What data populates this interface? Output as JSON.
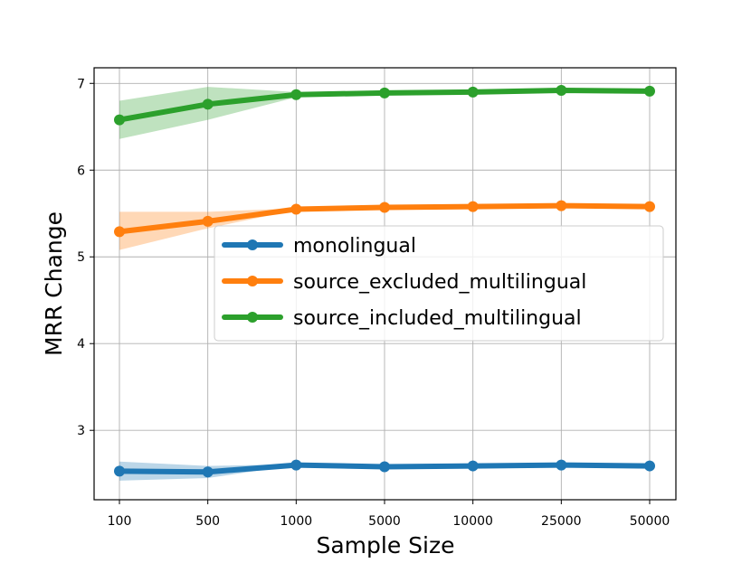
{
  "chart_data": {
    "type": "line",
    "categories": [
      "100",
      "500",
      "1000",
      "5000",
      "10000",
      "25000",
      "50000"
    ],
    "xlabel": "Sample Size",
    "ylabel": "MRR Change",
    "ylim": [
      2.2,
      7.18
    ],
    "yticks": [
      3,
      4,
      5,
      6,
      7
    ],
    "grid": true,
    "legend_placement": "center-right",
    "series": [
      {
        "name": "monolingual",
        "color": "#1f77b4",
        "values": [
          2.53,
          2.52,
          2.6,
          2.58,
          2.59,
          2.6,
          2.59
        ],
        "band_low": [
          2.42,
          2.45,
          2.6,
          2.58,
          2.59,
          2.6,
          2.59
        ],
        "band_high": [
          2.64,
          2.59,
          2.61,
          2.58,
          2.59,
          2.6,
          2.59
        ]
      },
      {
        "name": "source_excluded_multilingual",
        "color": "#ff7f0e",
        "values": [
          5.29,
          5.41,
          5.55,
          5.57,
          5.58,
          5.59,
          5.58
        ],
        "band_low": [
          5.08,
          5.33,
          5.54,
          5.57,
          5.58,
          5.59,
          5.58
        ],
        "band_high": [
          5.52,
          5.52,
          5.56,
          5.57,
          5.58,
          5.59,
          5.58
        ]
      },
      {
        "name": "source_included_multilingual",
        "color": "#2ca02c",
        "values": [
          6.58,
          6.76,
          6.87,
          6.89,
          6.9,
          6.92,
          6.91
        ],
        "band_low": [
          6.36,
          6.58,
          6.84,
          6.89,
          6.9,
          6.92,
          6.91
        ],
        "band_high": [
          6.8,
          6.96,
          6.9,
          6.89,
          6.9,
          6.92,
          6.91
        ]
      }
    ]
  }
}
